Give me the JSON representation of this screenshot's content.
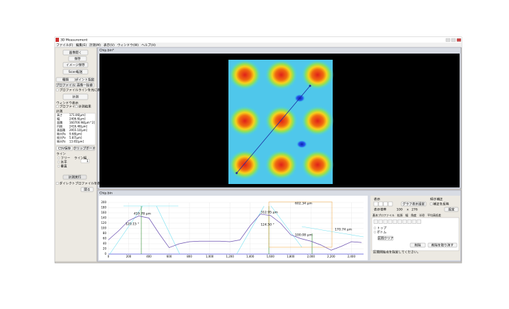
{
  "window": {
    "title": "3D Measurement",
    "menu": [
      "ファイル(F)",
      "編集(E)",
      "計測(M)",
      "表示(V)",
      "ウィンドウ(W)",
      "ヘルプ(H)"
    ]
  },
  "left_panel": {
    "buttons": [
      "画像開く",
      "保存",
      "イメージ保存",
      "Scan転送"
    ],
    "mode_buttons": [
      "種類",
      "ポイント指定",
      "プロファイル",
      "画像一括値"
    ],
    "profile_line_checkbox": "プロファイルラインを元に表示する",
    "measure_button": "計測",
    "window_display": {
      "label": "ウィンドウ表示",
      "options": [
        "プロファイル",
        "計測結果"
      ]
    },
    "results": {
      "title": "計測",
      "rows": [
        [
          "高さ",
          "171.06[µm]"
        ],
        [
          "幅",
          "2406.6[µm]"
        ],
        [
          "面積",
          "160700.98[µm^2]"
        ],
        [
          "円周",
          "2416.46[µm]"
        ],
        [
          "表面積",
          "2955.10[µm]"
        ],
        [
          "極大Pa",
          "9.68[µm]"
        ],
        [
          "極大Pv",
          "5.87[µm]"
        ],
        [
          "極大Pz",
          "13.65[µm]"
        ]
      ]
    },
    "csv_button": "CSV保存",
    "clipboard_button": "クリップボード",
    "line": {
      "label": "ライン",
      "options": [
        "フリー",
        "水平",
        "垂直"
      ],
      "width_label": "ライン幅",
      "width_value": "1"
    },
    "run_button": "計測実行",
    "direct_profile_checkbox": "ダイレクトプロファイルを表示する",
    "close_button": "閉る"
  },
  "image_window": {
    "title": "Chip.bin*"
  },
  "profile_window": {
    "title": "Chip.bin"
  },
  "profile_chart": {
    "type": "line",
    "x": [
      0,
      100,
      200,
      300,
      400,
      500,
      600,
      700,
      800,
      900,
      1000,
      1100,
      1200,
      1300,
      1400,
      1500,
      1600,
      1700,
      1800,
      1900,
      2000,
      2100,
      2200,
      2300,
      2400,
      2500
    ],
    "values": [
      55,
      90,
      130,
      148,
      140,
      80,
      25,
      40,
      48,
      50,
      50,
      50,
      48,
      55,
      110,
      155,
      150,
      120,
      75,
      60,
      50,
      35,
      15,
      30,
      48,
      45
    ],
    "color": "#6a4fb0",
    "xlim": [
      0,
      2520
    ],
    "ylim": [
      0,
      200
    ],
    "xticks": [
      0,
      200,
      400,
      600,
      800,
      {
        "value": 1000,
        "label": "1,000"
      },
      {
        "value": 1200,
        "label": "1,200"
      },
      {
        "value": 1400,
        "label": "1,400"
      },
      {
        "value": 1600,
        "label": "1,600"
      },
      {
        "value": 1800,
        "label": "1,800"
      },
      {
        "value": 2000,
        "label": "2,000"
      },
      {
        "value": 2200,
        "label": "2,200"
      },
      {
        "value": 2400,
        "label": "2,400"
      }
    ],
    "yticks": [
      0,
      20,
      40,
      60,
      80,
      100,
      120,
      140,
      160,
      180,
      200
    ],
    "grid": true,
    "annotations": [
      "419.78 μm",
      "120.15 °",
      "312.95 μm",
      "124.50 °",
      "602.34 μm",
      "100.08 μm",
      "170.74 μm"
    ]
  },
  "right_panel": {
    "display_label": "表示",
    "tilt_label": "傾き補正",
    "graph_settings_button": "グラフ表示設定",
    "apply_checkbox": "補正を反映",
    "zoom": {
      "label": "表示倍率",
      "x_value": "100",
      "sep": "x",
      "y_value": "276",
      "button": "設定"
    },
    "tabs": [
      "基本プロファイル",
      "拡張",
      "幅",
      "角度",
      "半径",
      "平均高低差"
    ],
    "list": [
      "トップ",
      "ボトム"
    ],
    "clear_button": "区間クリア",
    "delete_button": "削除",
    "undo_button": "削除を取り消す",
    "status": "区間開始点を指定してください。"
  }
}
